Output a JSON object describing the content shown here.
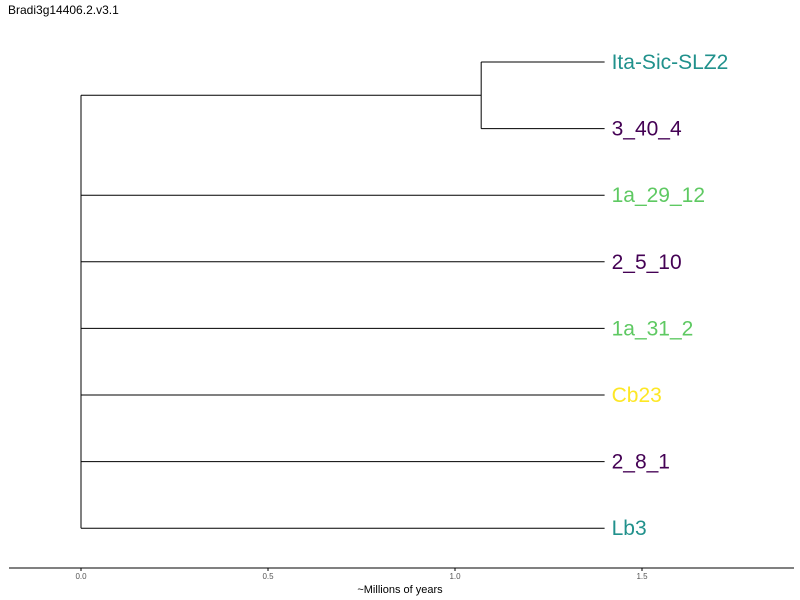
{
  "title": "Bradi3g14406.2.v3.1",
  "chart_data": {
    "type": "dendrogram",
    "xlabel": "~Millions of years",
    "xlim": [
      0,
      1.9
    ],
    "ticks": [
      {
        "value": 0.0,
        "label": "0.0"
      },
      {
        "value": 0.5,
        "label": "0.5"
      },
      {
        "value": 1.0,
        "label": "1.0"
      },
      {
        "value": 1.5,
        "label": "1.5"
      }
    ],
    "tree": {
      "root_depth": 0.0,
      "children": [
        {
          "depth": 1.07,
          "children": [
            {
              "tip": "Ita-Sic-SLZ2"
            },
            {
              "tip": "3_40_4"
            }
          ]
        },
        {
          "tip": "1a_29_12"
        },
        {
          "tip": "2_5_10"
        },
        {
          "tip": "1a_31_2"
        },
        {
          "tip": "Cb23"
        },
        {
          "tip": "2_8_1"
        },
        {
          "tip": "Lb3"
        }
      ]
    },
    "tip_depth": 1.4,
    "tips": [
      {
        "name": "Ita-Sic-SLZ2",
        "color": "#21918c"
      },
      {
        "name": "3_40_4",
        "color": "#440154"
      },
      {
        "name": "1a_29_12",
        "color": "#5ec962"
      },
      {
        "name": "2_5_10",
        "color": "#440154"
      },
      {
        "name": "1a_31_2",
        "color": "#5ec962"
      },
      {
        "name": "Cb23",
        "color": "#fde725"
      },
      {
        "name": "2_8_1",
        "color": "#440154"
      },
      {
        "name": "Lb3",
        "color": "#21918c"
      }
    ],
    "grid": false
  }
}
